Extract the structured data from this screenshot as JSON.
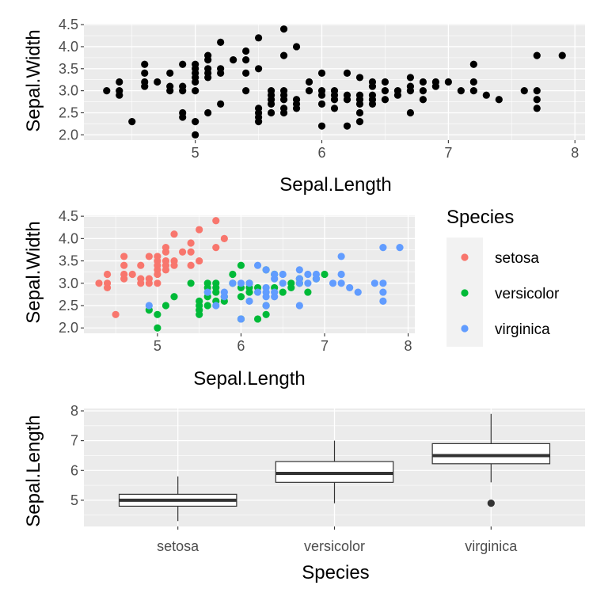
{
  "colors": {
    "panel_bg": "#ebebeb",
    "grid_major": "#ffffff",
    "point_plain": "#000000",
    "box_fill": "#ffffff",
    "box_line": "#333333",
    "outlier": "#333333"
  },
  "chart_data": [
    {
      "type": "scatter",
      "xlabel": "Sepal.Length",
      "ylabel": "Sepal.Width",
      "xlim": [
        4.3,
        7.9
      ],
      "ylim": [
        2.0,
        4.4
      ],
      "x_ticks": [
        5,
        6,
        7,
        8
      ],
      "x_tick_labels": [
        "5",
        "6",
        "7",
        "8"
      ],
      "y_ticks": [
        2.0,
        2.5,
        3.0,
        3.5,
        4.0,
        4.5
      ],
      "y_tick_labels": [
        "2.0",
        "2.5",
        "3.0",
        "3.5",
        "4.0",
        "4.5"
      ],
      "grid": true,
      "points": [
        [
          4.3,
          3.0
        ],
        [
          4.4,
          2.9
        ],
        [
          4.4,
          3.0
        ],
        [
          4.4,
          3.2
        ],
        [
          4.5,
          2.3
        ],
        [
          4.6,
          3.1
        ],
        [
          4.6,
          3.2
        ],
        [
          4.6,
          3.4
        ],
        [
          4.6,
          3.6
        ],
        [
          4.7,
          3.2
        ],
        [
          4.8,
          3.0
        ],
        [
          4.8,
          3.1
        ],
        [
          4.8,
          3.4
        ],
        [
          4.9,
          2.4
        ],
        [
          4.9,
          2.5
        ],
        [
          4.9,
          3.0
        ],
        [
          4.9,
          3.1
        ],
        [
          4.9,
          3.6
        ],
        [
          5.0,
          2.0
        ],
        [
          5.0,
          2.3
        ],
        [
          5.0,
          3.0
        ],
        [
          5.0,
          3.2
        ],
        [
          5.0,
          3.3
        ],
        [
          5.0,
          3.4
        ],
        [
          5.0,
          3.5
        ],
        [
          5.0,
          3.6
        ],
        [
          5.1,
          2.5
        ],
        [
          5.1,
          3.3
        ],
        [
          5.1,
          3.4
        ],
        [
          5.1,
          3.5
        ],
        [
          5.1,
          3.7
        ],
        [
          5.1,
          3.8
        ],
        [
          5.2,
          2.7
        ],
        [
          5.2,
          3.4
        ],
        [
          5.2,
          3.5
        ],
        [
          5.2,
          4.1
        ],
        [
          5.3,
          3.7
        ],
        [
          5.4,
          3.0
        ],
        [
          5.4,
          3.4
        ],
        [
          5.4,
          3.7
        ],
        [
          5.4,
          3.9
        ],
        [
          5.5,
          2.3
        ],
        [
          5.5,
          2.4
        ],
        [
          5.5,
          2.5
        ],
        [
          5.5,
          2.6
        ],
        [
          5.5,
          3.5
        ],
        [
          5.5,
          4.2
        ],
        [
          5.6,
          2.5
        ],
        [
          5.6,
          2.7
        ],
        [
          5.6,
          2.8
        ],
        [
          5.6,
          2.9
        ],
        [
          5.6,
          3.0
        ],
        [
          5.7,
          2.5
        ],
        [
          5.7,
          2.6
        ],
        [
          5.7,
          2.8
        ],
        [
          5.7,
          2.9
        ],
        [
          5.7,
          3.0
        ],
        [
          5.7,
          3.8
        ],
        [
          5.7,
          4.4
        ],
        [
          5.8,
          2.6
        ],
        [
          5.8,
          2.7
        ],
        [
          5.8,
          2.8
        ],
        [
          5.8,
          4.0
        ],
        [
          5.9,
          3.0
        ],
        [
          5.9,
          3.2
        ],
        [
          6.0,
          2.2
        ],
        [
          6.0,
          2.7
        ],
        [
          6.0,
          2.9
        ],
        [
          6.0,
          3.0
        ],
        [
          6.0,
          3.4
        ],
        [
          6.1,
          2.6
        ],
        [
          6.1,
          2.8
        ],
        [
          6.1,
          2.9
        ],
        [
          6.1,
          3.0
        ],
        [
          6.2,
          2.2
        ],
        [
          6.2,
          2.8
        ],
        [
          6.2,
          2.9
        ],
        [
          6.2,
          3.4
        ],
        [
          6.3,
          2.3
        ],
        [
          6.3,
          2.5
        ],
        [
          6.3,
          2.7
        ],
        [
          6.3,
          2.8
        ],
        [
          6.3,
          2.9
        ],
        [
          6.3,
          3.3
        ],
        [
          6.4,
          2.7
        ],
        [
          6.4,
          2.8
        ],
        [
          6.4,
          2.9
        ],
        [
          6.4,
          3.1
        ],
        [
          6.4,
          3.2
        ],
        [
          6.5,
          2.8
        ],
        [
          6.5,
          3.0
        ],
        [
          6.5,
          3.2
        ],
        [
          6.6,
          2.9
        ],
        [
          6.6,
          3.0
        ],
        [
          6.7,
          2.5
        ],
        [
          6.7,
          3.0
        ],
        [
          6.7,
          3.1
        ],
        [
          6.7,
          3.3
        ],
        [
          6.8,
          2.8
        ],
        [
          6.8,
          3.0
        ],
        [
          6.8,
          3.2
        ],
        [
          6.9,
          3.1
        ],
        [
          6.9,
          3.2
        ],
        [
          7.0,
          3.2
        ],
        [
          7.1,
          3.0
        ],
        [
          7.2,
          3.0
        ],
        [
          7.2,
          3.2
        ],
        [
          7.2,
          3.6
        ],
        [
          7.3,
          2.9
        ],
        [
          7.4,
          2.8
        ],
        [
          7.6,
          3.0
        ],
        [
          7.7,
          2.6
        ],
        [
          7.7,
          2.8
        ],
        [
          7.7,
          3.0
        ],
        [
          7.7,
          3.8
        ],
        [
          7.9,
          3.8
        ]
      ]
    },
    {
      "type": "scatter",
      "xlabel": "Sepal.Length",
      "ylabel": "Sepal.Width",
      "xlim": [
        4.3,
        7.9
      ],
      "ylim": [
        2.0,
        4.4
      ],
      "x_ticks": [
        5,
        6,
        7,
        8
      ],
      "x_tick_labels": [
        "5",
        "6",
        "7",
        "8"
      ],
      "y_ticks": [
        2.0,
        2.5,
        3.0,
        3.5,
        4.0,
        4.5
      ],
      "y_tick_labels": [
        "2.0",
        "2.5",
        "3.0",
        "3.5",
        "4.0",
        "4.5"
      ],
      "grid": true,
      "legend": {
        "title": "Species",
        "placement": "right"
      },
      "series": [
        {
          "name": "setosa",
          "color": "#F8766D",
          "points": [
            [
              4.3,
              3.0
            ],
            [
              4.4,
              2.9
            ],
            [
              4.4,
              3.0
            ],
            [
              4.4,
              3.2
            ],
            [
              4.5,
              2.3
            ],
            [
              4.6,
              3.1
            ],
            [
              4.6,
              3.2
            ],
            [
              4.6,
              3.4
            ],
            [
              4.6,
              3.6
            ],
            [
              4.7,
              3.2
            ],
            [
              4.8,
              3.0
            ],
            [
              4.8,
              3.1
            ],
            [
              4.8,
              3.4
            ],
            [
              4.9,
              3.0
            ],
            [
              4.9,
              3.1
            ],
            [
              4.9,
              3.6
            ],
            [
              5.0,
              3.0
            ],
            [
              5.0,
              3.2
            ],
            [
              5.0,
              3.3
            ],
            [
              5.0,
              3.4
            ],
            [
              5.0,
              3.5
            ],
            [
              5.0,
              3.6
            ],
            [
              5.1,
              3.3
            ],
            [
              5.1,
              3.4
            ],
            [
              5.1,
              3.5
            ],
            [
              5.1,
              3.7
            ],
            [
              5.1,
              3.8
            ],
            [
              5.2,
              3.4
            ],
            [
              5.2,
              3.5
            ],
            [
              5.2,
              4.1
            ],
            [
              5.3,
              3.7
            ],
            [
              5.4,
              3.4
            ],
            [
              5.4,
              3.7
            ],
            [
              5.4,
              3.9
            ],
            [
              5.5,
              3.5
            ],
            [
              5.5,
              4.2
            ],
            [
              5.7,
              3.8
            ],
            [
              5.7,
              4.4
            ],
            [
              5.8,
              4.0
            ]
          ]
        },
        {
          "name": "versicolor",
          "color": "#00BA38",
          "points": [
            [
              4.9,
              2.4
            ],
            [
              5.0,
              2.0
            ],
            [
              5.0,
              2.3
            ],
            [
              5.1,
              2.5
            ],
            [
              5.2,
              2.7
            ],
            [
              5.4,
              3.0
            ],
            [
              5.5,
              2.3
            ],
            [
              5.5,
              2.4
            ],
            [
              5.5,
              2.5
            ],
            [
              5.5,
              2.6
            ],
            [
              5.6,
              2.5
            ],
            [
              5.6,
              2.7
            ],
            [
              5.6,
              2.9
            ],
            [
              5.6,
              3.0
            ],
            [
              5.7,
              2.6
            ],
            [
              5.7,
              2.8
            ],
            [
              5.7,
              2.9
            ],
            [
              5.7,
              3.0
            ],
            [
              5.8,
              2.6
            ],
            [
              5.8,
              2.7
            ],
            [
              5.9,
              3.0
            ],
            [
              5.9,
              3.2
            ],
            [
              6.0,
              2.2
            ],
            [
              6.0,
              2.7
            ],
            [
              6.0,
              2.9
            ],
            [
              6.0,
              3.4
            ],
            [
              6.1,
              2.8
            ],
            [
              6.1,
              2.9
            ],
            [
              6.1,
              3.0
            ],
            [
              6.2,
              2.2
            ],
            [
              6.2,
              2.9
            ],
            [
              6.3,
              2.3
            ],
            [
              6.3,
              2.5
            ],
            [
              6.3,
              3.3
            ],
            [
              6.4,
              2.9
            ],
            [
              6.4,
              3.2
            ],
            [
              6.5,
              2.8
            ],
            [
              6.6,
              2.9
            ],
            [
              6.6,
              3.0
            ],
            [
              6.7,
              3.0
            ],
            [
              6.7,
              3.1
            ],
            [
              6.8,
              2.8
            ],
            [
              6.9,
              3.1
            ],
            [
              7.0,
              3.2
            ]
          ]
        },
        {
          "name": "virginica",
          "color": "#619CFF",
          "points": [
            [
              4.9,
              2.5
            ],
            [
              5.6,
              2.8
            ],
            [
              5.7,
              2.5
            ],
            [
              5.8,
              2.7
            ],
            [
              5.8,
              2.8
            ],
            [
              5.9,
              3.0
            ],
            [
              6.0,
              2.2
            ],
            [
              6.0,
              3.0
            ],
            [
              6.1,
              2.6
            ],
            [
              6.1,
              3.0
            ],
            [
              6.2,
              2.8
            ],
            [
              6.2,
              3.4
            ],
            [
              6.3,
              2.5
            ],
            [
              6.3,
              2.7
            ],
            [
              6.3,
              2.8
            ],
            [
              6.3,
              2.9
            ],
            [
              6.3,
              3.3
            ],
            [
              6.4,
              2.7
            ],
            [
              6.4,
              2.8
            ],
            [
              6.4,
              3.1
            ],
            [
              6.4,
              3.2
            ],
            [
              6.5,
              3.0
            ],
            [
              6.5,
              3.2
            ],
            [
              6.7,
              2.5
            ],
            [
              6.7,
              3.0
            ],
            [
              6.7,
              3.1
            ],
            [
              6.7,
              3.3
            ],
            [
              6.8,
              3.0
            ],
            [
              6.8,
              3.2
            ],
            [
              6.9,
              3.1
            ],
            [
              6.9,
              3.2
            ],
            [
              7.1,
              3.0
            ],
            [
              7.2,
              3.0
            ],
            [
              7.2,
              3.2
            ],
            [
              7.2,
              3.6
            ],
            [
              7.3,
              2.9
            ],
            [
              7.4,
              2.8
            ],
            [
              7.6,
              3.0
            ],
            [
              7.7,
              2.6
            ],
            [
              7.7,
              2.8
            ],
            [
              7.7,
              3.0
            ],
            [
              7.7,
              3.8
            ],
            [
              7.9,
              3.8
            ]
          ]
        }
      ]
    },
    {
      "type": "box",
      "xlabel": "Species",
      "ylabel": "Sepal.Length",
      "categories": [
        "setosa",
        "versicolor",
        "virginica"
      ],
      "ylim": [
        4.3,
        7.9
      ],
      "y_ticks": [
        5,
        6,
        7,
        8
      ],
      "y_tick_labels": [
        "5",
        "6",
        "7",
        "8"
      ],
      "grid": true,
      "boxes": [
        {
          "category": "setosa",
          "min": 4.3,
          "q1": 4.8,
          "median": 5.0,
          "q3": 5.2,
          "max": 5.8,
          "outliers": []
        },
        {
          "category": "versicolor",
          "min": 4.9,
          "q1": 5.6,
          "median": 5.9,
          "q3": 6.3,
          "max": 7.0,
          "outliers": []
        },
        {
          "category": "virginica",
          "min": 5.6,
          "q1": 6.225,
          "median": 6.5,
          "q3": 6.9,
          "max": 7.9,
          "outliers": [
            4.9
          ]
        }
      ]
    }
  ]
}
